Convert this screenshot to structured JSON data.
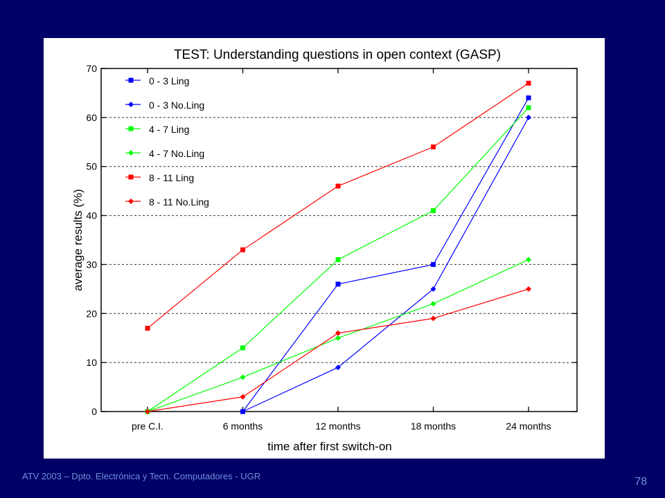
{
  "slide": {
    "footer": "ATV 2003 – Dpto. Electrónica y Tecn. Computadores - UGR",
    "page_number": "78"
  },
  "colors": {
    "background": "#000066",
    "panel": "#ffffff",
    "footer_text": "#6f8fd8"
  },
  "chart_data": {
    "type": "line",
    "title": "TEST: Understanding questions in open context (GASP)",
    "xlabel": "time after first switch-on",
    "ylabel": "average results (%)",
    "categories": [
      "pre C.I.",
      "6 months",
      "12 months",
      "18 months",
      "24 months"
    ],
    "ylim": [
      0,
      70
    ],
    "yticks": [
      0,
      10,
      20,
      30,
      40,
      50,
      60,
      70
    ],
    "grid": "horizontal dashed",
    "legend_position": "top-left",
    "series": [
      {
        "name": "0 - 3 Ling",
        "color": "#0000ff",
        "marker": "square",
        "values": [
          null,
          0,
          26,
          30,
          64
        ]
      },
      {
        "name": "0 - 3 No.Ling",
        "color": "#0000ff",
        "marker": "diamond",
        "values": [
          null,
          0,
          9,
          25,
          60
        ]
      },
      {
        "name": "4 - 7 Ling",
        "color": "#00ff00",
        "marker": "square",
        "values": [
          0,
          13,
          31,
          41,
          62
        ]
      },
      {
        "name": "4 - 7 No.Ling",
        "color": "#00ff00",
        "marker": "diamond",
        "values": [
          0,
          7,
          15,
          22,
          31
        ]
      },
      {
        "name": "8 - 11 Ling",
        "color": "#ff0000",
        "marker": "square",
        "values": [
          17,
          33,
          46,
          54,
          67
        ]
      },
      {
        "name": "8 - 11 No.Ling",
        "color": "#ff0000",
        "marker": "diamond",
        "values": [
          0,
          3,
          16,
          19,
          25
        ]
      }
    ]
  }
}
